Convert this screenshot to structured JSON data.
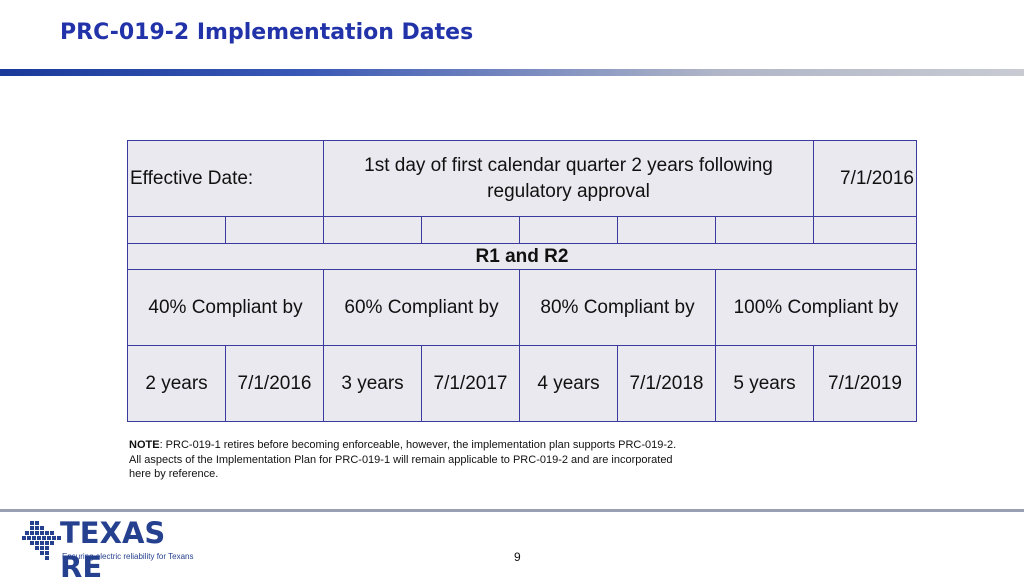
{
  "slide": {
    "title": "PRC-019-2 Implementation Dates",
    "page_number": "9"
  },
  "table": {
    "effective_label": "Effective Date:",
    "effective_description": "1st day of first calendar quarter 2 years following regulatory approval",
    "effective_value": "7/1/2016",
    "section_header": "R1 and R2",
    "compliance_headers": [
      "40% Compliant by",
      "60% Compliant by",
      "80% Compliant by",
      "100% Compliant by"
    ],
    "milestones": [
      {
        "years": "2 years",
        "date": "7/1/2016",
        "highlight": false
      },
      {
        "years": "3 years",
        "date": "7/1/2017",
        "highlight": false
      },
      {
        "years": "4 years",
        "date": "7/1/2018",
        "highlight": true,
        "highlight_color": "#e00000"
      },
      {
        "years": "5 years",
        "date": "7/1/2019",
        "highlight": false
      }
    ]
  },
  "note": {
    "label": "NOTE",
    "text": ":  PRC-019-1 retires before becoming enforceable, however, the implementation plan supports PRC-019-2. All aspects of the Implementation Plan for PRC-019-1 will remain applicable to PRC-019-2 and are incorporated here by reference."
  },
  "logo": {
    "wordmark": "TEXAS RE",
    "tagline": "Ensuring electric reliability for Texans",
    "brand_color": "#25408f"
  },
  "colors": {
    "title": "#2233aa",
    "table_border": "#3b3b9e",
    "table_fill": "#e9e9ef"
  }
}
